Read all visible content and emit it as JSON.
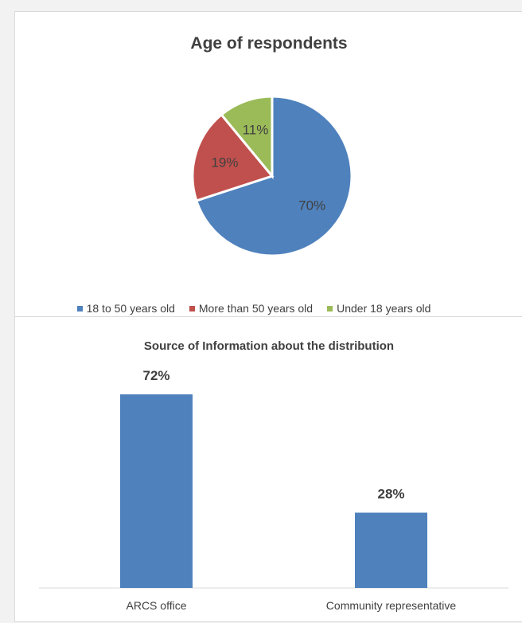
{
  "charts": {
    "pie": {
      "title": "Age of respondents",
      "colors": [
        "#4f81bd",
        "#c0504d",
        "#9bbb59"
      ]
    },
    "bar": {
      "title": "Source of Information about the distribution",
      "bar_color": "#4f81bd"
    }
  },
  "chart_data": [
    {
      "type": "pie",
      "title": "Age of respondents",
      "categories": [
        "18 to 50 years old",
        "More than 50 years old",
        "Under 18 years old"
      ],
      "values": [
        70,
        19,
        11
      ],
      "labels": [
        "70%",
        "19%",
        "11%"
      ],
      "legend": "bottom"
    },
    {
      "type": "bar",
      "title": "Source of Information about the distribution",
      "categories": [
        "ARCS office",
        "Community representative"
      ],
      "values": [
        72,
        28
      ],
      "labels": [
        "72%",
        "28%"
      ],
      "xlabel": "",
      "ylabel": "",
      "ylim": [
        0,
        80
      ],
      "grid": false
    }
  ]
}
